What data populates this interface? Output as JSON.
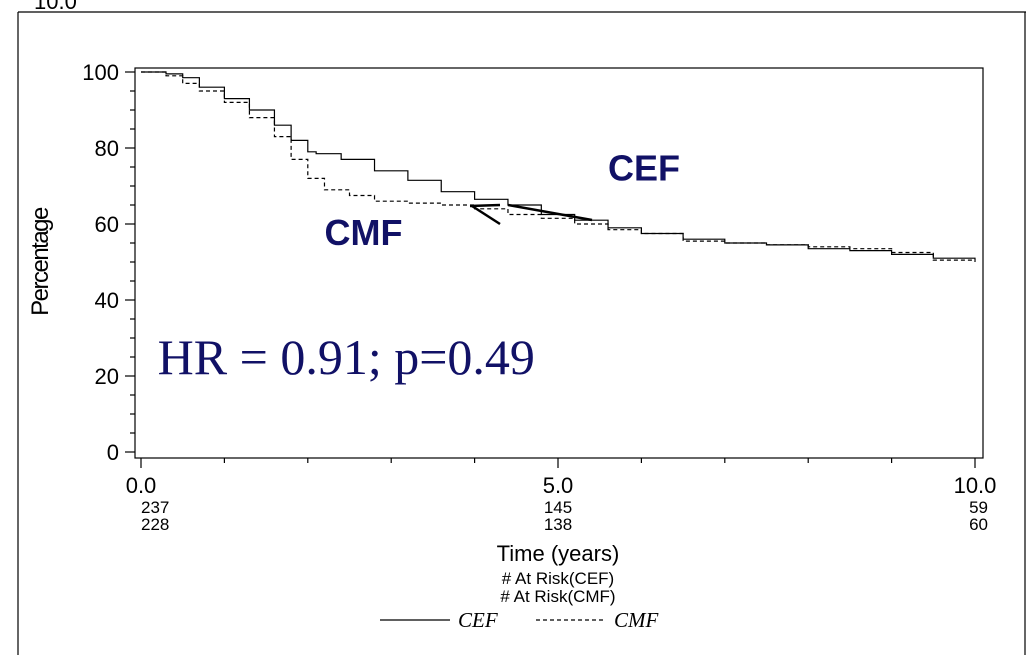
{
  "top_clipped_label": "10.0",
  "chart_data": {
    "type": "line",
    "title": "",
    "xlabel": "Time (years)",
    "ylabel": "Percentage",
    "xlim": [
      0,
      10
    ],
    "ylim": [
      0,
      100
    ],
    "x_ticks": [
      "0.0",
      "5.0",
      "10.0"
    ],
    "y_ticks": [
      "0",
      "20",
      "40",
      "60",
      "80",
      "100"
    ],
    "x_minor_step": 1,
    "y_minor_step": 5,
    "grid": false,
    "colors": {
      "line": "#000000",
      "annotation": "#111166"
    },
    "series": [
      {
        "name": "CEF",
        "style": "solid",
        "x": [
          0,
          0.3,
          0.5,
          0.7,
          1.0,
          1.3,
          1.6,
          1.8,
          2.0,
          2.1,
          2.4,
          2.8,
          3.2,
          3.6,
          4.0,
          4.4,
          4.8,
          5.2,
          5.6,
          6.0,
          6.5,
          7.0,
          7.5,
          8.0,
          8.5,
          9.0,
          9.5,
          10.0
        ],
        "y": [
          100,
          99.5,
          98.5,
          96,
          93,
          90,
          86,
          82,
          79,
          78.5,
          77,
          74,
          71.5,
          68.5,
          66.5,
          65,
          62.5,
          61,
          59,
          57.5,
          56,
          55,
          54.5,
          53.5,
          53,
          52,
          51,
          50.5
        ]
      },
      {
        "name": "CMF",
        "style": "dashed",
        "x": [
          0,
          0.3,
          0.5,
          0.7,
          1.0,
          1.3,
          1.6,
          1.8,
          2.0,
          2.2,
          2.5,
          2.8,
          3.2,
          3.6,
          4.0,
          4.4,
          4.8,
          5.2,
          5.6,
          6.0,
          6.5,
          7.0,
          7.5,
          8.0,
          8.5,
          9.0,
          9.5,
          10.0
        ],
        "y": [
          100,
          99,
          97,
          95,
          92,
          88,
          83,
          77,
          72,
          69,
          67.5,
          66,
          65.5,
          65,
          64,
          62.5,
          61.5,
          60,
          58.5,
          57.5,
          55.5,
          55,
          54.5,
          54,
          53.5,
          52.5,
          50.5,
          50
        ]
      }
    ],
    "annotations": [
      {
        "text": "CEF",
        "x": 5.6,
        "y": 71.5
      },
      {
        "text": "CMF",
        "x": 2.2,
        "y": 54.5
      },
      {
        "text": "HR = 0.91; p=0.49",
        "x": 0.2,
        "y": 20.5
      }
    ],
    "at_risk": {
      "positions": [
        0,
        5,
        10
      ],
      "CEF": [
        "237",
        "145",
        "59"
      ],
      "CMF": [
        "228",
        "138",
        "60"
      ],
      "label_cef": "# At Risk(CEF)",
      "label_cmf": "# At Risk(CMF)"
    },
    "legend": {
      "placement": "bottom-center",
      "entries": [
        {
          "label": "CEF",
          "style": "solid"
        },
        {
          "label": "CMF",
          "style": "dashed"
        }
      ]
    }
  }
}
